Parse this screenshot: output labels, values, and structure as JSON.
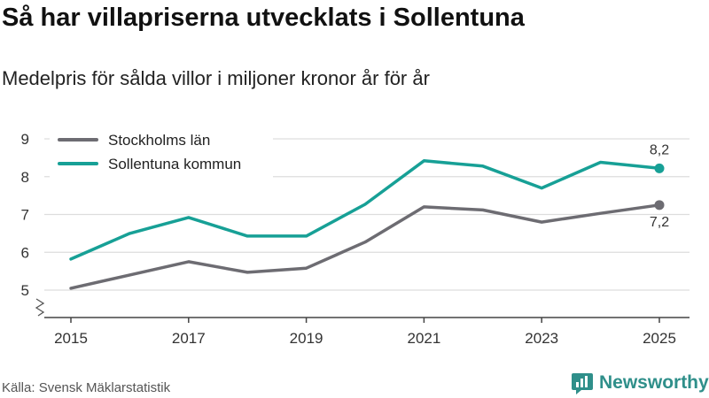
{
  "header": {
    "title": "Så har villapriserna utvecklats i Sollentuna",
    "subtitle": "Medelpris för sålda villor i miljoner kronor år för år"
  },
  "footer": {
    "source": "Källa: Svensk Mäklarstatistik",
    "brand": "Newsworthy"
  },
  "colors": {
    "stockholm": "#6d6c72",
    "sollentuna": "#17a096",
    "grid": "#dddddd",
    "axis": "#444444",
    "brand": "#2f8f8a"
  },
  "chart_data": {
    "type": "line",
    "title": "Så har villapriserna utvecklats i Sollentuna",
    "subtitle": "Medelpris för sålda villor i miljoner kronor år för år",
    "xlabel": "",
    "ylabel": "",
    "x": [
      2015,
      2016,
      2017,
      2018,
      2019,
      2020,
      2021,
      2022,
      2023,
      2024,
      2025
    ],
    "xticks": [
      "2015",
      "2017",
      "2019",
      "2021",
      "2023",
      "2025"
    ],
    "yticks": [
      "9",
      "8",
      "7",
      "6",
      "5"
    ],
    "ylim": [
      4.4,
      9.0
    ],
    "xlim": [
      2015,
      2025
    ],
    "axis_break": true,
    "grid": true,
    "legend_position": "top-left",
    "series": [
      {
        "name": "Stockholms län",
        "key": "stockholm",
        "values": [
          5.05,
          5.4,
          5.75,
          5.47,
          5.58,
          6.27,
          7.2,
          7.12,
          6.8,
          7.03,
          7.25
        ],
        "end_label": "7,2",
        "end_label_position": "below"
      },
      {
        "name": "Sollentuna kommun",
        "key": "sollentuna",
        "values": [
          5.82,
          6.5,
          6.92,
          6.43,
          6.43,
          7.27,
          8.42,
          8.28,
          7.7,
          8.38,
          8.22
        ],
        "end_label": "8,2",
        "end_label_position": "above"
      }
    ]
  }
}
